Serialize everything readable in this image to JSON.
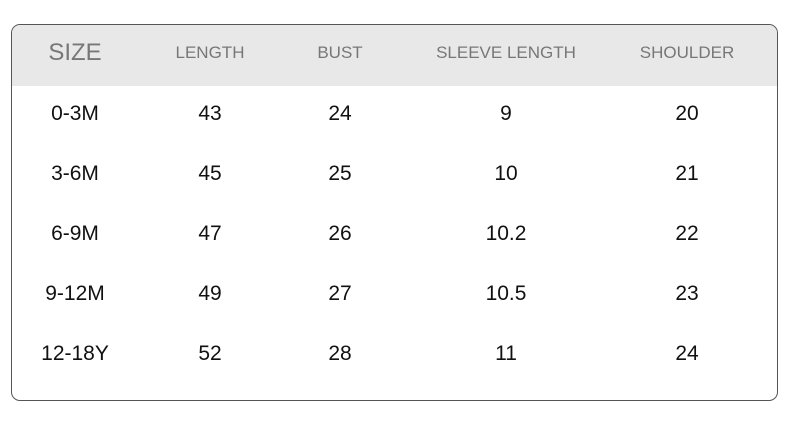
{
  "headers": [
    "SIZE",
    "LENGTH",
    "BUST",
    "SLEEVE LENGTH",
    "SHOULDER"
  ],
  "rows": [
    [
      "0-3M",
      "43",
      "24",
      "9",
      "20"
    ],
    [
      "3-6M",
      "45",
      "25",
      "10",
      "21"
    ],
    [
      "6-9M",
      "47",
      "26",
      "10.2",
      "22"
    ],
    [
      "9-12M",
      "49",
      "27",
      "10.5",
      "23"
    ],
    [
      "12-18Y",
      "52",
      "28",
      "11",
      "24"
    ]
  ],
  "colors": {
    "header_bg": "#e8e8e8",
    "header_text": "#777777",
    "body_text": "#111111",
    "border": "#555555"
  }
}
